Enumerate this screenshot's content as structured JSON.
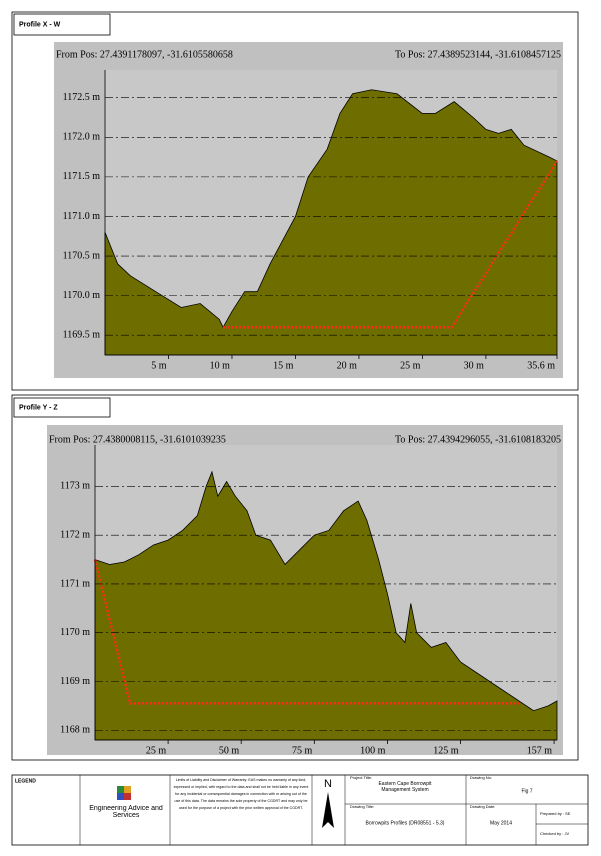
{
  "chart_data": [
    {
      "type": "area",
      "panel_label": "Profile X - W",
      "from_pos": "From Pos: 27.4391178097, -31.6105580658",
      "to_pos": "To Pos: 27.4389523144, -31.6108457125",
      "xlim": [
        0,
        35.6
      ],
      "ylim": [
        1169.25,
        1172.85
      ],
      "xticks": [
        {
          "value": 5,
          "label": "5 m"
        },
        {
          "value": 10,
          "label": "10 m"
        },
        {
          "value": 15,
          "label": "15 m"
        },
        {
          "value": 20,
          "label": "20 m"
        },
        {
          "value": 25,
          "label": "25 m"
        },
        {
          "value": 30,
          "label": "30 m"
        },
        {
          "value": 35.6,
          "label": "35.6 m"
        }
      ],
      "yticks": [
        {
          "value": 1169.5,
          "label": "1169.5 m"
        },
        {
          "value": 1170.0,
          "label": "1170.0 m"
        },
        {
          "value": 1170.5,
          "label": "1170.5 m"
        },
        {
          "value": 1171.0,
          "label": "1171.0 m"
        },
        {
          "value": 1171.5,
          "label": "1171.5 m"
        },
        {
          "value": 1172.0,
          "label": "1172.0 m"
        },
        {
          "value": 1172.5,
          "label": "1172.5 m"
        }
      ],
      "grid": true,
      "series": [
        {
          "color": "#6e6e00",
          "fill": true,
          "x": [
            0,
            1,
            2,
            4,
            6,
            7.5,
            9,
            9.3,
            10,
            11,
            12,
            13,
            15,
            16,
            17.5,
            18.5,
            19.5,
            21,
            23,
            25,
            26,
            27.5,
            29,
            30,
            31,
            32,
            33,
            35,
            35.6
          ],
          "values": [
            1170.8,
            1170.4,
            1170.25,
            1170.05,
            1169.85,
            1169.9,
            1169.7,
            1169.6,
            1169.8,
            1170.05,
            1170.05,
            1170.4,
            1171.0,
            1171.5,
            1171.85,
            1172.3,
            1172.55,
            1172.6,
            1172.55,
            1172.3,
            1172.3,
            1172.45,
            1172.25,
            1172.1,
            1172.05,
            1172.1,
            1171.9,
            1171.75,
            1171.7
          ]
        },
        {
          "color": "#ff2a1a",
          "fill": false,
          "x": [
            9.3,
            27.3,
            35.6
          ],
          "values": [
            1169.6,
            1169.6,
            1171.7
          ]
        }
      ]
    },
    {
      "type": "area",
      "panel_label": "Profile Y - Z",
      "from_pos": "From Pos: 27.4380008115, -31.6101039235",
      "to_pos": "To Pos: 27.4394296055, -31.6108183205",
      "xlim": [
        0,
        158
      ],
      "ylim": [
        1167.8,
        1173.85
      ],
      "xticks": [
        {
          "value": 25,
          "label": "25 m"
        },
        {
          "value": 50,
          "label": "50 m"
        },
        {
          "value": 75,
          "label": "75 m"
        },
        {
          "value": 100,
          "label": "100 m"
        },
        {
          "value": 125,
          "label": "125 m"
        },
        {
          "value": 157,
          "label": "157 m"
        }
      ],
      "yticks": [
        {
          "value": 1168,
          "label": "1168 m"
        },
        {
          "value": 1169,
          "label": "1169 m"
        },
        {
          "value": 1170,
          "label": "1170 m"
        },
        {
          "value": 1171,
          "label": "1171 m"
        },
        {
          "value": 1172,
          "label": "1172 m"
        },
        {
          "value": 1173,
          "label": "1173 m"
        }
      ],
      "grid": true,
      "series": [
        {
          "color": "#6e6e00",
          "fill": true,
          "x": [
            0,
            5,
            10,
            15,
            20,
            25,
            30,
            35,
            38,
            40,
            42,
            45,
            48,
            52,
            55,
            60,
            65,
            70,
            75,
            80,
            85,
            90,
            93,
            97,
            100,
            103,
            106,
            108,
            110,
            115,
            120,
            125,
            130,
            135,
            140,
            145,
            150,
            155,
            158
          ],
          "values": [
            1171.5,
            1171.4,
            1171.45,
            1171.6,
            1171.8,
            1171.9,
            1172.1,
            1172.4,
            1173.0,
            1173.3,
            1172.8,
            1173.1,
            1172.8,
            1172.5,
            1172.0,
            1171.9,
            1171.4,
            1171.7,
            1172.0,
            1172.1,
            1172.5,
            1172.7,
            1172.3,
            1171.5,
            1170.8,
            1170.0,
            1169.8,
            1170.6,
            1170.0,
            1169.7,
            1169.8,
            1169.4,
            1169.2,
            1169.0,
            1168.8,
            1168.6,
            1168.4,
            1168.5,
            1168.6
          ]
        },
        {
          "color": "#ff2a1a",
          "fill": false,
          "x": [
            0,
            12,
            145
          ],
          "values": [
            1171.5,
            1168.55,
            1168.55
          ]
        }
      ]
    }
  ],
  "title_block": {
    "legend": "LEGEND",
    "company": "Engineering Advice and Services",
    "disclaimer": "Limits of Liability and Disclaimer of Warranty: EAS makes no warranty of any kind, expressed or implied, with regard to the data and shall not be held liable in any event for any incidental or consequential damages in connection with or arising out of the use of this data. The data remains the sole property of the CGDRT and may only be used for the purpose of a project with the prior written approval of the CGDRT.",
    "north": "N",
    "project_title_label": "Project Title:",
    "project_title": "Eastern Cape Borrowpit Management System",
    "drawing_no_label": "Drawing No:",
    "drawing_no": "Fig 7",
    "drawing_title_label": "Drawing Title:",
    "drawing_title": "Borrowpits Profiles (DR08551 - 5.3)",
    "drawing_date_label": "Drawing Date:",
    "drawing_date": "May 2014",
    "prepared_by": "Prepared by : SE",
    "checked_by": "Checked by : JV"
  }
}
